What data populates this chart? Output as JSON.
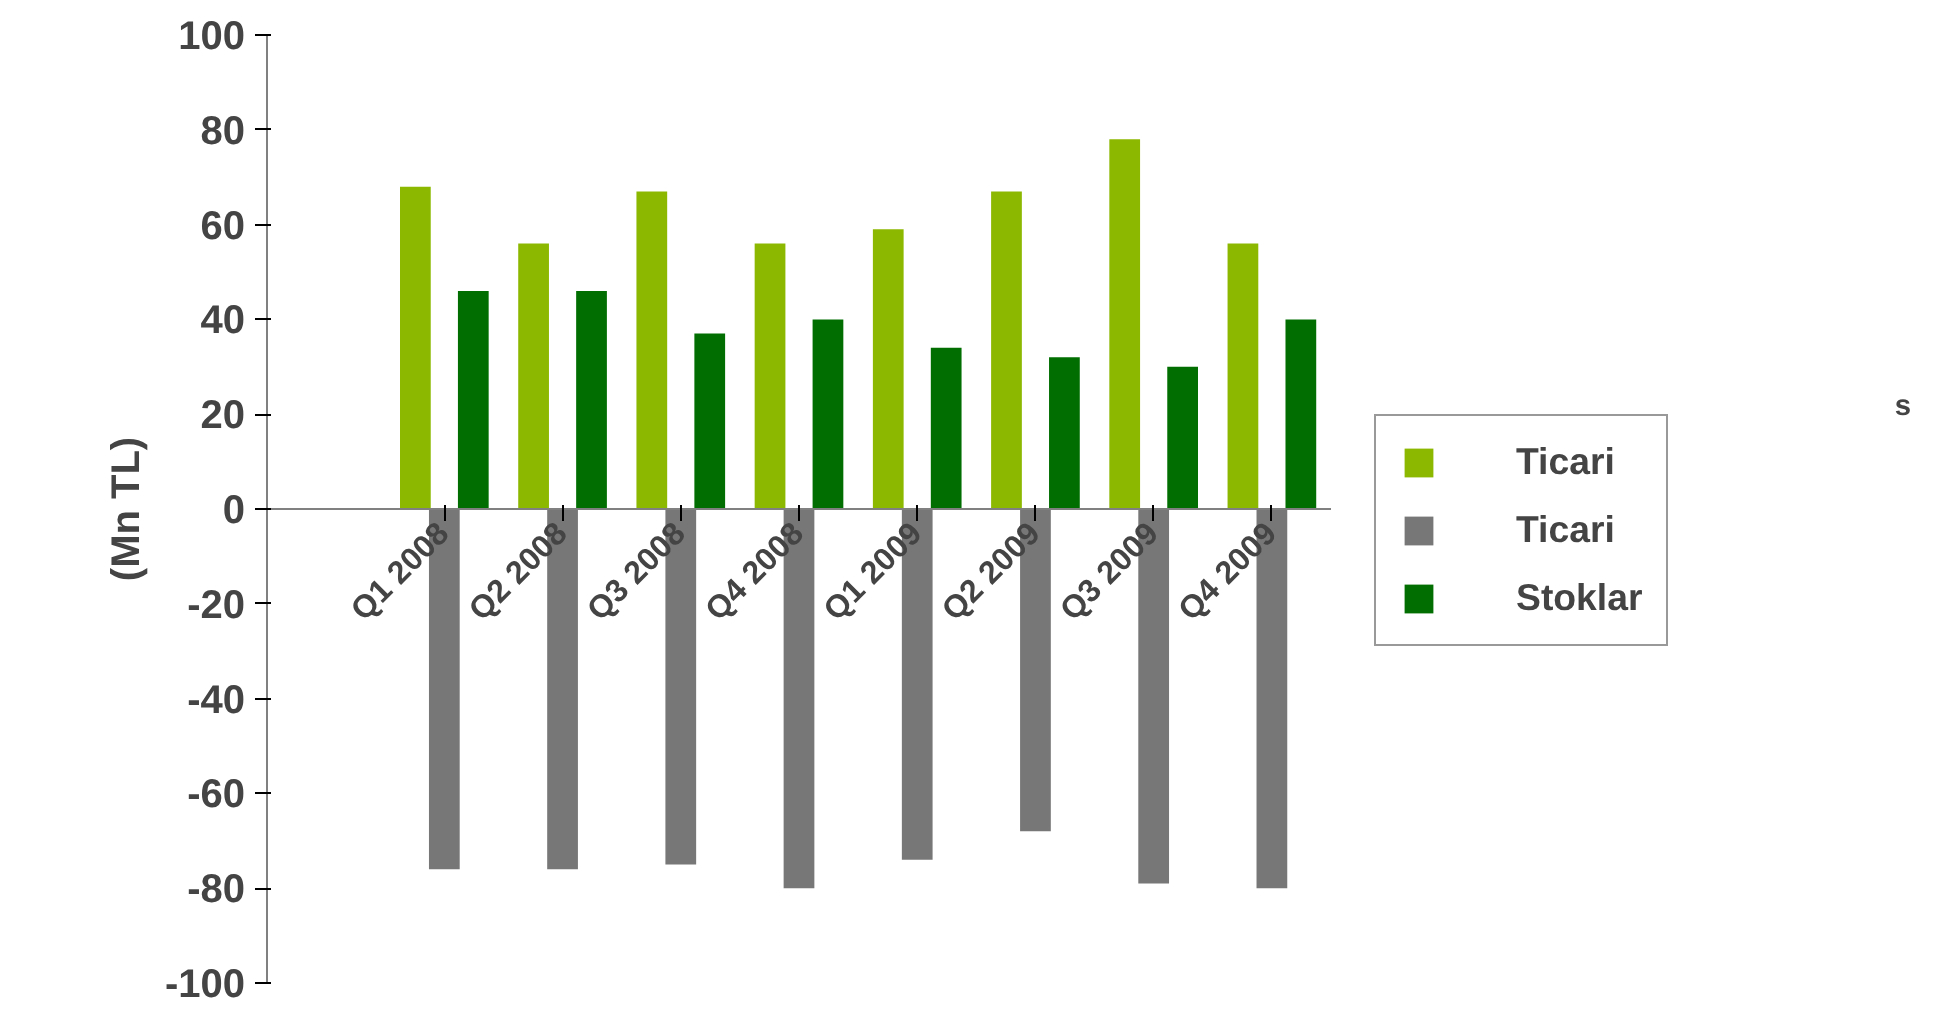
{
  "chart_data": {
    "type": "bar",
    "ylabel": "(Mn TL)",
    "categories": [
      null,
      "Q1 2008",
      "Q2 2008",
      "Q3 2008",
      "Q4 2008",
      "Q1 2009",
      "Q2 2009",
      "Q3 2009",
      "Q4 2009"
    ],
    "series": [
      {
        "name": "Ticari",
        "color": "#8cb800",
        "values": [
          null,
          68,
          56,
          67,
          56,
          59,
          67,
          78,
          56
        ]
      },
      {
        "name": "Ticari",
        "color": "#777777",
        "values": [
          null,
          -76,
          -76,
          -75,
          -80,
          -74,
          -68,
          -79,
          -80
        ]
      },
      {
        "name": "Stoklar",
        "color": "#006e00",
        "values": [
          null,
          46,
          46,
          37,
          40,
          34,
          32,
          30,
          40
        ]
      }
    ],
    "ylim": [
      -100,
      100
    ],
    "yticks": [
      -100,
      -80,
      -60,
      -40,
      -20,
      0,
      20,
      40,
      60,
      80,
      100
    ],
    "annotations": [
      "s"
    ],
    "grid": false,
    "legend": "right"
  }
}
